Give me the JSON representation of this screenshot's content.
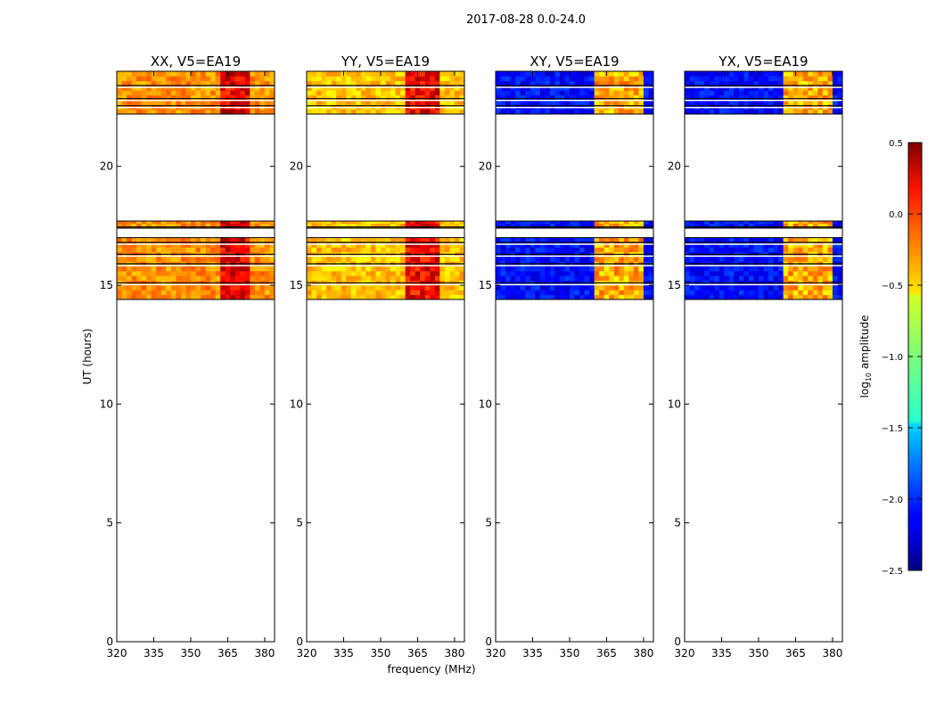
{
  "figure": {
    "suptitle": "2017-08-28 0.0-24.0",
    "xlabel": "frequency (MHz)",
    "ylabel": "UT (hours)"
  },
  "colorbar": {
    "label": "log10 amplitude",
    "label_main": "log",
    "label_sub": "10",
    "label_rest": " amplitude",
    "ticks": [
      0.5,
      0.0,
      -0.5,
      -1.0,
      -1.5,
      -2.0,
      -2.5
    ],
    "tick_labels": [
      "0.5",
      "0.0",
      "−0.5",
      "−1.0",
      "−1.5",
      "−2.0",
      "−2.5"
    ],
    "range": [
      -2.5,
      0.5
    ],
    "colormap": "jet"
  },
  "chart_data": [
    {
      "type": "heatmap",
      "title": "XX, V5=EA19",
      "xlabel": "",
      "ylabel": "UT (hours)",
      "xlim": [
        320,
        384
      ],
      "ylim": [
        0,
        24
      ],
      "xticks": [
        320,
        335,
        350,
        365,
        380
      ],
      "xtick_labels": [
        "320",
        "335",
        "350",
        "365",
        "380"
      ],
      "yticks": [
        0,
        5,
        10,
        15,
        20
      ],
      "ytick_labels": [
        "0",
        "5",
        "10",
        "15",
        "20"
      ],
      "data_time_ranges": [
        [
          14.4,
          17.0
        ],
        [
          17.4,
          17.7
        ],
        [
          22.2,
          24.0
        ]
      ],
      "baseline_log10_amplitude": -0.3,
      "bright_band_MHz": [
        [
          362,
          374
        ]
      ],
      "bright_band_log10_amplitude": 0.2,
      "gap_lines_UT": [
        22.55,
        22.85,
        23.4,
        15.1,
        15.9,
        16.3,
        16.8,
        17.45
      ]
    },
    {
      "type": "heatmap",
      "title": "YY, V5=EA19",
      "xlabel": "frequency (MHz)",
      "ylabel": "",
      "xlim": [
        320,
        384
      ],
      "ylim": [
        0,
        24
      ],
      "xticks": [
        320,
        335,
        350,
        365,
        380
      ],
      "xtick_labels": [
        "320",
        "335",
        "350",
        "365",
        "380"
      ],
      "yticks": [
        0,
        5,
        10,
        15,
        20
      ],
      "ytick_labels": [
        "0",
        "5",
        "10",
        "15",
        "20"
      ],
      "data_time_ranges": [
        [
          14.4,
          17.0
        ],
        [
          17.4,
          17.7
        ],
        [
          22.2,
          24.0
        ]
      ],
      "baseline_log10_amplitude": -0.45,
      "bright_band_MHz": [
        [
          361,
          373
        ]
      ],
      "bright_band_log10_amplitude": 0.15,
      "gap_lines_UT": [
        22.55,
        22.85,
        23.4,
        15.1,
        15.9,
        16.3,
        16.8,
        17.45
      ]
    },
    {
      "type": "heatmap",
      "title": "XY, V5=EA19",
      "xlabel": "",
      "ylabel": "",
      "xlim": [
        320,
        384
      ],
      "ylim": [
        0,
        24
      ],
      "xticks": [
        320,
        335,
        350,
        365,
        380
      ],
      "xtick_labels": [
        "320",
        "335",
        "350",
        "365",
        "380"
      ],
      "yticks": [
        0,
        5,
        10,
        15,
        20
      ],
      "ytick_labels": [
        "0",
        "5",
        "10",
        "15",
        "20"
      ],
      "data_time_ranges": [
        [
          14.4,
          17.0
        ],
        [
          17.4,
          17.7
        ],
        [
          22.2,
          24.0
        ]
      ],
      "baseline_log10_amplitude": -2.1,
      "bright_band_MHz": [
        [
          361,
          379
        ]
      ],
      "bright_band_log10_amplitude": -0.4,
      "gap_lines_UT": [
        22.55,
        22.85,
        23.4,
        15.1,
        15.9,
        16.3,
        16.8,
        17.45
      ]
    },
    {
      "type": "heatmap",
      "title": "YX, V5=EA19",
      "xlabel": "",
      "ylabel": "",
      "xlim": [
        320,
        384
      ],
      "ylim": [
        0,
        24
      ],
      "xticks": [
        320,
        335,
        350,
        365,
        380
      ],
      "xtick_labels": [
        "320",
        "335",
        "350",
        "365",
        "380"
      ],
      "yticks": [
        0,
        5,
        10,
        15,
        20
      ],
      "ytick_labels": [
        "0",
        "5",
        "10",
        "15",
        "20"
      ],
      "data_time_ranges": [
        [
          14.4,
          17.0
        ],
        [
          17.4,
          17.7
        ],
        [
          22.2,
          24.0
        ]
      ],
      "baseline_log10_amplitude": -2.1,
      "bright_band_MHz": [
        [
          361,
          379
        ]
      ],
      "bright_band_log10_amplitude": -0.4,
      "gap_lines_UT": [
        22.55,
        22.85,
        23.4,
        15.1,
        15.9,
        16.3,
        16.8,
        17.45
      ]
    }
  ]
}
